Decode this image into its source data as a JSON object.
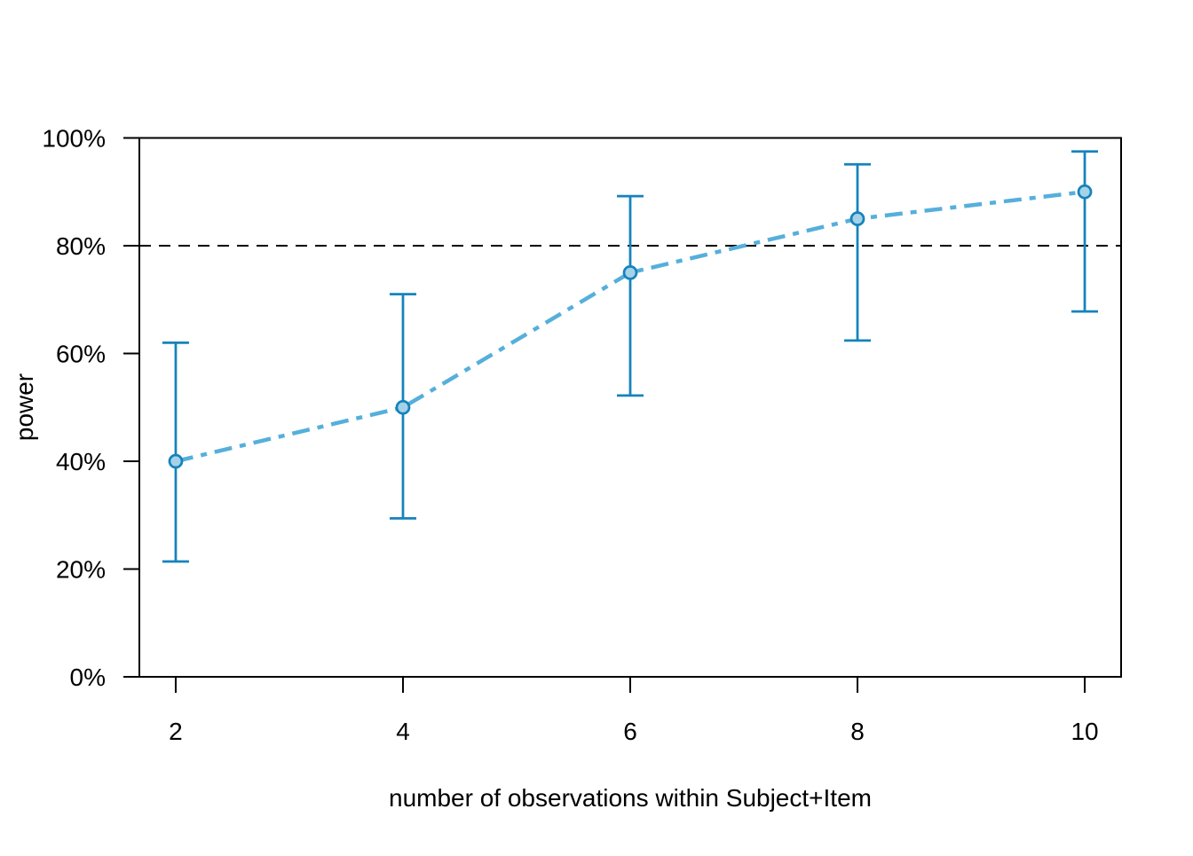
{
  "chart_data": {
    "type": "line",
    "title": "",
    "xlabel": "number of observations within Subject+Item",
    "ylabel": "power",
    "x": [
      2,
      4,
      6,
      8,
      10
    ],
    "x_tick_labels": [
      "2",
      "4",
      "6",
      "8",
      "10"
    ],
    "y_tick_values": [
      0,
      20,
      40,
      60,
      80,
      100
    ],
    "y_tick_labels": [
      "0%",
      "20%",
      "40%",
      "60%",
      "80%",
      "100%"
    ],
    "xlim": [
      1.68,
      10.32
    ],
    "ylim": [
      0,
      100
    ],
    "grid": false,
    "legend": null,
    "series": [
      {
        "name": "power",
        "values": [
          40,
          50,
          75,
          85,
          90
        ],
        "ci_lower": [
          21.4,
          29.4,
          52.2,
          62.4,
          67.8
        ],
        "ci_upper": [
          62.0,
          71.0,
          89.2,
          95.1,
          97.5
        ],
        "line_style": "dotdash",
        "marker": "circle"
      }
    ],
    "reference_line": {
      "value": 80,
      "style": "dashed",
      "color": "#000000"
    },
    "colors": {
      "line": "#56AFDB",
      "error_bar": "#1583BC",
      "marker_fill": "#A6D2E8",
      "marker_stroke": "#1583BC",
      "axis": "#000000",
      "background": "#FFFFFF"
    }
  }
}
